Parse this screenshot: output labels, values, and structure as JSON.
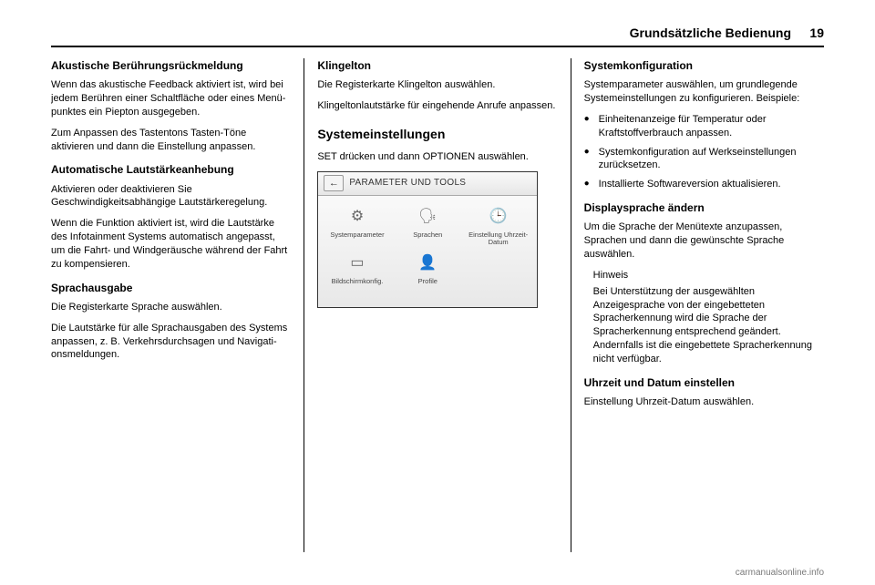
{
  "header": {
    "section_title": "Grundsätzliche Bedienung",
    "page_number": "19"
  },
  "col1": {
    "h_acoustic": "Akustische Berührungsrückmeldung",
    "p_acoustic1": "Wenn das akustische Feedback akti­viert ist, wird bei jedem Berühren einer Schaltfläche oder eines Menü­punktes ein Piepton ausgegeben.",
    "p_acoustic2": "Zum Anpassen des Tastentons Tasten-Töne aktivieren und dann die Einstellung anpassen.",
    "h_autovol": "Automatische Lautstärkeanhebung",
    "p_autovol1": "Aktivieren oder deaktivieren Sie Geschwindigkeitsabhängige Laut­stärkeregelung.",
    "p_autovol2": "Wenn die Funktion aktiviert ist, wird die Lautstärke des Infotainment Systems automatisch angepasst, um die Fahrt- und Windgeräusche während der Fahrt zu kompensieren.",
    "h_speech": "Sprachausgabe",
    "p_speech1": "Die Registerkarte Sprache auswäh­len.",
    "p_speech2": "Die Lautstärke für alle Sprachausga­ben des Systems anpassen, z. B. Verkehrsdurchsagen und Navigati­onsmeldungen."
  },
  "col2": {
    "h_ring": "Klingelton",
    "p_ring1": "Die Registerkarte Klingelton auswäh­len.",
    "p_ring2": "Klingeltonlautstärke für eingehende Anrufe anpassen.",
    "h_sysset": "Systemeinstellungen",
    "p_sysset1": "SET drücken und dann OPTIONEN auswählen."
  },
  "screenshot": {
    "title": "PARAMETER UND TOOLS",
    "back_glyph": "←",
    "items": [
      {
        "icon": "⚙",
        "label": "Systemparameter"
      },
      {
        "icon": "🗣",
        "label": "Sprachen"
      },
      {
        "icon": "🕒",
        "label": "Einstellung Uhrzeit-Datum"
      },
      {
        "icon": "▭",
        "label": "Bildschirmkonfig."
      },
      {
        "icon": "👤",
        "label": "Profile"
      }
    ]
  },
  "col3": {
    "h_sysconf": "Systemkonfiguration",
    "p_sysconf_intro": "Systemparameter auswählen, um grundlegende Systemeinstellungen zu konfigurieren. Beispiele:",
    "bullets": [
      "Einheitenanzeige für Temperatur oder Kraftstoffverbrauch anpas­sen.",
      "Systemkonfiguration auf Werks­einstellungen zurücksetzen.",
      "Installierte Softwareversion aktu­alisieren."
    ],
    "h_displang": "Displaysprache ändern",
    "p_displang": "Um die Sprache der Menütexte anzu­passen, Sprachen und dann die gewünschte Sprache auswählen.",
    "note_title": "Hinweis",
    "note_body": "Bei Unterstützung der ausgewählten Anzeigesprache von der eingebette­ten Spracherkennung wird die Spra­che der Spracherkennung entspre­chend geändert. Andernfalls ist die eingebettete Spracherkennung nicht verfügbar.",
    "h_timedate": "Uhrzeit und Datum einstellen",
    "p_timedate": "Einstellung Uhrzeit-Datum auswäh­len."
  },
  "footer": "carmanualsonline.info"
}
